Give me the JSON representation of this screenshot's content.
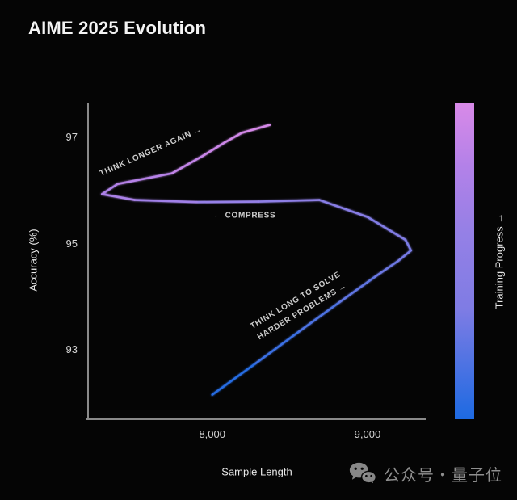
{
  "chart_data": {
    "type": "line",
    "title": "AIME 2025 Evolution",
    "xlabel": "Sample Length",
    "ylabel": "Accuracy (%)",
    "xlim": [
      7200,
      9375
    ],
    "ylim": [
      91.7,
      97.65
    ],
    "grid": false,
    "background": "#050505",
    "axis_color": "#8a8a8a",
    "tick_color": "#d3d3d3",
    "x_ticks": [
      {
        "value": 8000,
        "label": "8,000"
      },
      {
        "value": 9000,
        "label": "9,000"
      }
    ],
    "y_ticks": [
      {
        "value": 93,
        "label": "93"
      },
      {
        "value": 95,
        "label": "95"
      },
      {
        "value": 97,
        "label": "97"
      }
    ],
    "colorbar": {
      "label": "Training Progress →",
      "position": "right"
    },
    "gradient_stops": [
      [
        0.0,
        "#1d6ae2"
      ],
      [
        0.35,
        "#7f7ce4"
      ],
      [
        0.6,
        "#9680e6"
      ],
      [
        0.8,
        "#b381e8"
      ],
      [
        1.0,
        "#d98ae8"
      ]
    ],
    "series": [
      {
        "name": "AIME 2025 accuracy vs sample length over training",
        "points": [
          [
            8000,
            92.16
          ],
          [
            8280,
            92.75
          ],
          [
            8560,
            93.35
          ],
          [
            8820,
            93.9
          ],
          [
            9050,
            94.38
          ],
          [
            9200,
            94.68
          ],
          [
            9280,
            94.87
          ],
          [
            9245,
            95.07
          ],
          [
            9000,
            95.5
          ],
          [
            8690,
            95.82
          ],
          [
            8300,
            95.79
          ],
          [
            7900,
            95.78
          ],
          [
            7500,
            95.82
          ],
          [
            7290,
            95.93
          ],
          [
            7390,
            96.12
          ],
          [
            7740,
            96.32
          ],
          [
            7940,
            96.65
          ],
          [
            8080,
            96.9
          ],
          [
            8190,
            97.08
          ],
          [
            8370,
            97.23
          ]
        ]
      }
    ],
    "annotations": [
      {
        "name": "think-longer-again",
        "text": "THINK LONGER AGAIN →",
        "x": 7606,
        "y": 96.72,
        "rotation": -24
      },
      {
        "name": "compress",
        "text": "← COMPRESS",
        "x": 8209,
        "y": 95.53,
        "rotation": 0
      },
      {
        "name": "think-long-harder",
        "text": "THINK LONG TO SOLVE\nHARDER PROBLEMS →",
        "x": 8560,
        "y": 93.82,
        "rotation": -31
      }
    ]
  },
  "watermark": {
    "icon": "wechat-icon",
    "text": "公众号・量子位"
  }
}
